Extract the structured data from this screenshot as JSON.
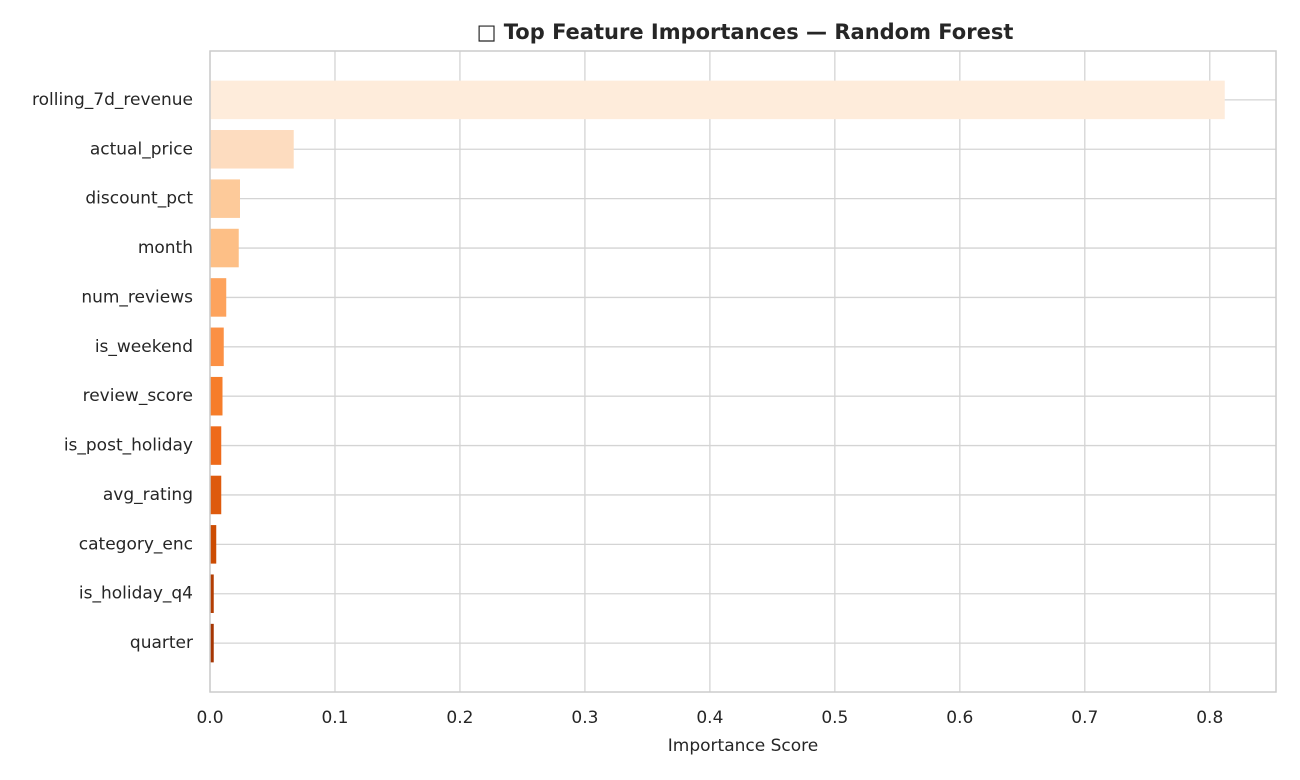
{
  "chart_data": {
    "type": "barh",
    "title": "□ Top Feature Importances — Random Forest",
    "xlabel": "Importance Score",
    "categories": [
      "rolling_7d_revenue",
      "actual_price",
      "discount_pct",
      "month",
      "num_reviews",
      "is_weekend",
      "review_score",
      "is_post_holiday",
      "avg_rating",
      "category_enc",
      "is_holiday_q4",
      "quarter"
    ],
    "values": [
      0.812,
      0.067,
      0.024,
      0.023,
      0.013,
      0.011,
      0.01,
      0.009,
      0.009,
      0.005,
      0.003,
      0.003
    ],
    "colors": [
      "#feecdb",
      "#fddcbf",
      "#fdca9a",
      "#fdbf86",
      "#fda35d",
      "#fb9044",
      "#f67d2a",
      "#ee6a1a",
      "#de5a0d",
      "#cc4c02",
      "#b33e03",
      "#a63603"
    ],
    "xlim": [
      0,
      0.853
    ],
    "xticks": [
      {
        "value": 0,
        "label": "0.0"
      },
      0.1,
      0.2,
      0.3,
      0.4,
      0.5,
      0.6,
      0.7,
      0.8
    ],
    "grid": true
  }
}
